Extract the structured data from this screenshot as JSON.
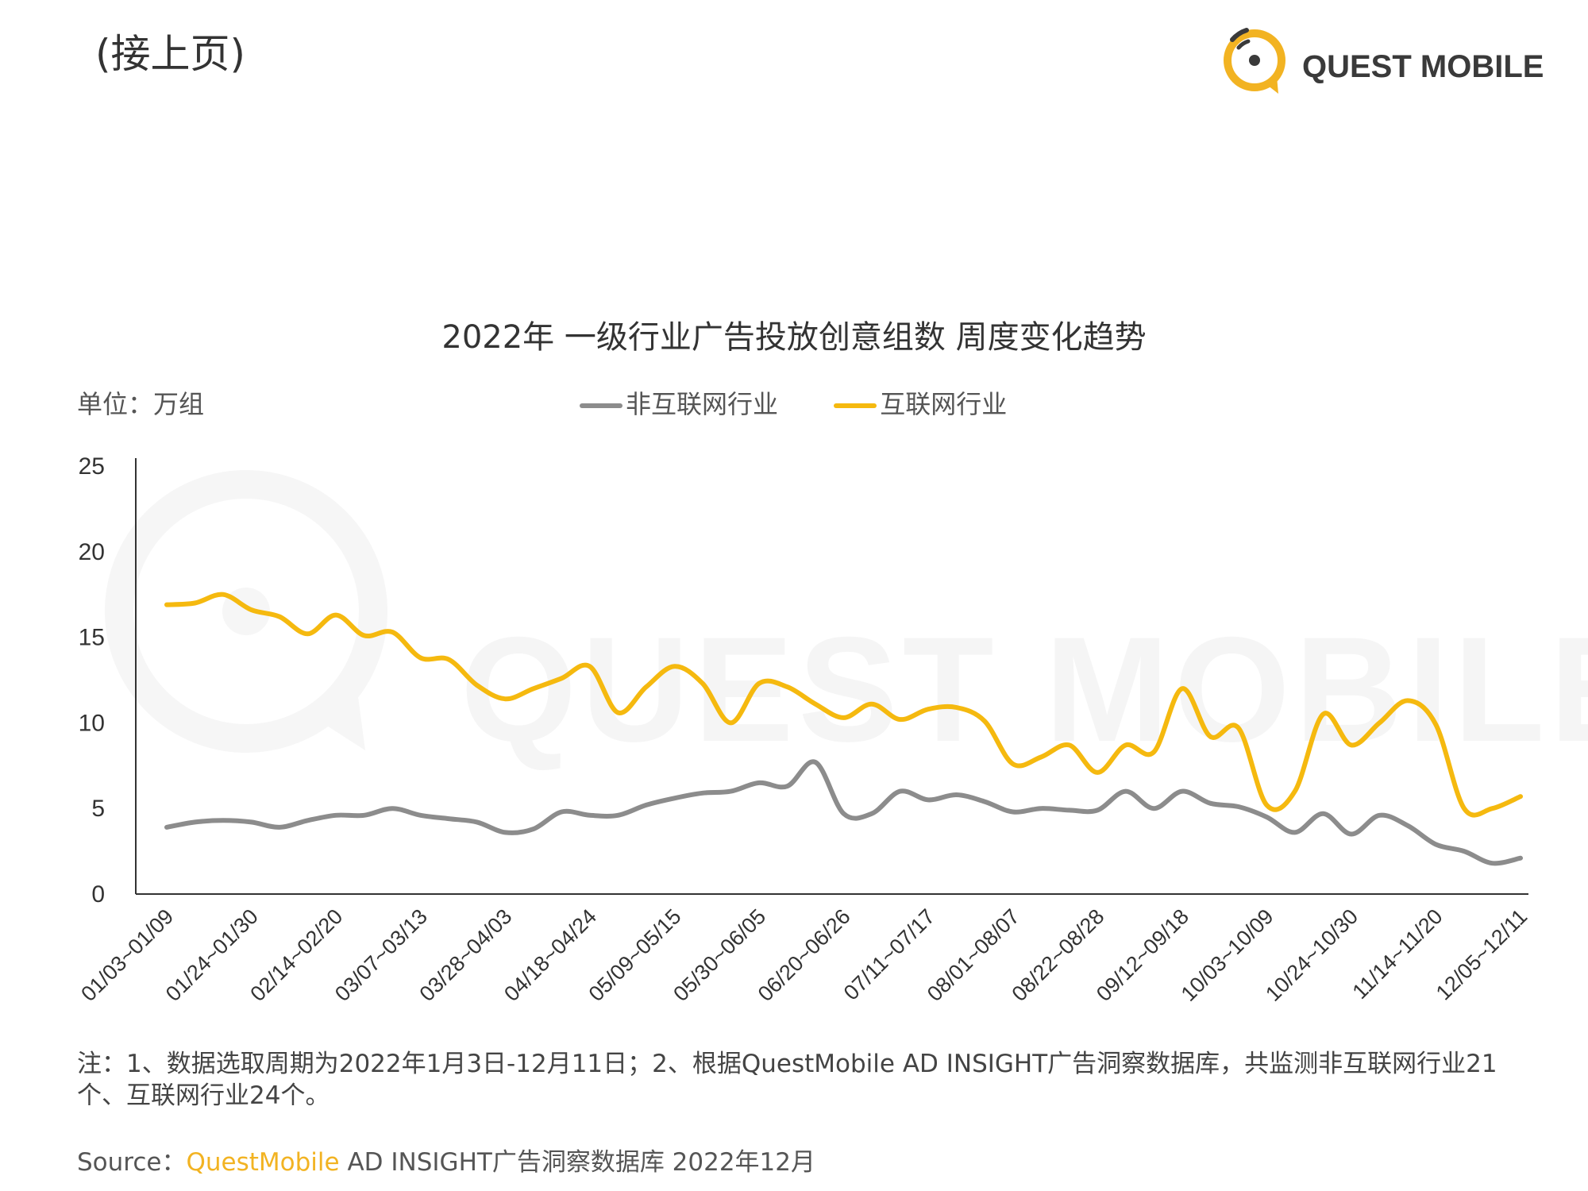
{
  "header": {
    "continued": "(接上页)",
    "logo_text": "QUEST MOBILE"
  },
  "watermark": {
    "text": "QUEST MOBILE"
  },
  "colors": {
    "internet": "#f5b90f",
    "non_internet": "#8c8c8c",
    "brand": "#f2b322"
  },
  "chart_data": {
    "type": "line",
    "title": "2022年 一级行业广告投放创意组数 周度变化趋势",
    "unit_label": "单位：万组",
    "ylim": [
      0,
      25
    ],
    "yticks": [
      0,
      5,
      10,
      15,
      20,
      25
    ],
    "grid": false,
    "legend_position": "top-center",
    "x_tick_labels": [
      "01/03~01/09",
      "01/24~01/30",
      "02/14~02/20",
      "03/07~03/13",
      "03/28~04/03",
      "04/18~04/24",
      "05/09~05/15",
      "05/30~06/05",
      "06/20~06/26",
      "07/11~07/17",
      "08/01~08/07",
      "08/22~08/28",
      "09/12~09/18",
      "10/03~10/09",
      "10/24~10/30",
      "11/14~11/20",
      "12/05~12/11"
    ],
    "series": [
      {
        "name": "非互联网行业",
        "color": "#8c8c8c",
        "values": [
          3.9,
          4.2,
          4.3,
          4.2,
          3.9,
          4.3,
          4.6,
          4.6,
          5.0,
          4.6,
          4.4,
          4.2,
          3.6,
          3.8,
          4.8,
          4.6,
          4.6,
          5.2,
          5.6,
          5.9,
          6.0,
          6.5,
          6.3,
          7.7,
          4.7,
          4.7,
          6.0,
          5.5,
          5.8,
          5.4,
          4.8,
          5.0,
          4.9,
          4.9,
          6.0,
          5.0,
          6.0,
          5.3,
          5.1,
          4.5,
          3.6,
          4.7,
          3.5,
          4.6,
          4.0,
          2.9,
          2.5,
          1.8,
          2.1
        ]
      },
      {
        "name": "互联网行业",
        "color": "#f5b90f",
        "values": [
          16.9,
          17.0,
          17.5,
          16.6,
          16.2,
          15.2,
          16.3,
          15.1,
          15.3,
          13.8,
          13.7,
          12.2,
          11.4,
          12.0,
          12.6,
          13.3,
          10.6,
          12.1,
          13.3,
          12.3,
          10.0,
          12.3,
          12.1,
          11.1,
          10.3,
          11.1,
          10.2,
          10.8,
          10.9,
          10.1,
          7.6,
          8.0,
          8.7,
          7.1,
          8.7,
          8.3,
          12.0,
          9.2,
          9.7,
          5.2,
          6.0,
          10.5,
          8.7,
          10.0,
          11.3,
          9.9,
          5.0,
          5.0,
          5.7
        ]
      }
    ]
  },
  "note": "注：1、数据选取周期为2022年1月3日-12月11日；2、根据QuestMobile AD INSIGHT广告洞察数据库，共监测非互联网行业21个、互联网行业24个。",
  "source": {
    "label": "Source：",
    "brand": "QuestMobile",
    "rest": " AD INSIGHT广告洞察数据库 2022年12月"
  }
}
